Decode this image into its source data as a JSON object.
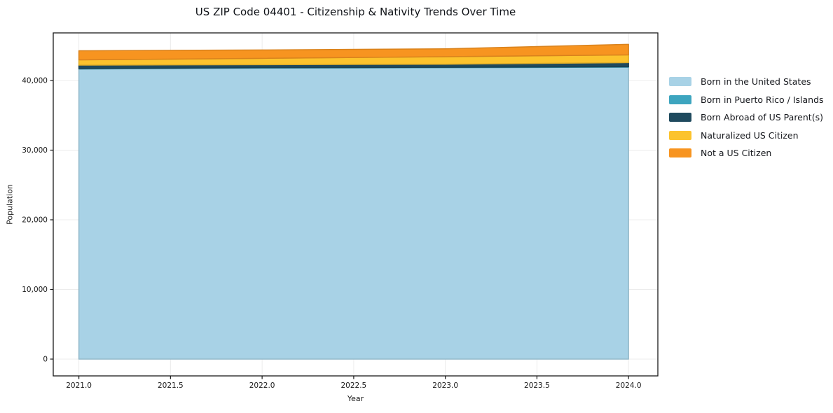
{
  "title": "US ZIP Code 04401 - Citizenship & Nativity Trends Over Time",
  "chart_data": {
    "type": "area",
    "stacked": true,
    "title": "US ZIP Code 04401 - Citizenship & Nativity Trends Over Time",
    "xlabel": "Year",
    "ylabel": "Population",
    "x": [
      2021,
      2022,
      2023,
      2024
    ],
    "series": [
      {
        "name": "Born in the United States",
        "color": "#a8d2e6",
        "values": [
          41650,
          41780,
          41840,
          41910
        ]
      },
      {
        "name": "Born in Puerto Rico / Islands",
        "color": "#3da5bf",
        "values": [
          60,
          60,
          60,
          60
        ]
      },
      {
        "name": "Born Abroad of US Parent(s)",
        "color": "#1f4a5e",
        "values": [
          500,
          430,
          440,
          600
        ]
      },
      {
        "name": "Naturalized US Citizen",
        "color": "#fcc32d",
        "values": [
          750,
          910,
          1070,
          1110
        ]
      },
      {
        "name": "Not a US Citizen",
        "color": "#f79420",
        "values": [
          1310,
          1200,
          1140,
          1510
        ]
      }
    ],
    "xlim": [
      2020.86,
      2024.16
    ],
    "ylim": [
      -2412,
      46833
    ],
    "x_ticks": [
      2021.0,
      2021.5,
      2022.0,
      2022.5,
      2023.0,
      2023.5,
      2024.0
    ],
    "x_tick_labels": [
      "2021.0",
      "2021.5",
      "2022.0",
      "2022.5",
      "2023.0",
      "2023.5",
      "2024.0"
    ],
    "y_ticks": [
      0,
      10000,
      20000,
      30000,
      40000
    ],
    "y_tick_labels": [
      "0",
      "10,000",
      "20,000",
      "30,000",
      "40,000"
    ],
    "grid": true,
    "grid_color": "#ececec",
    "frame_color": "#1a1a1a",
    "tick_label_color": "#1a1a1a",
    "legend_position": "right of plot"
  }
}
